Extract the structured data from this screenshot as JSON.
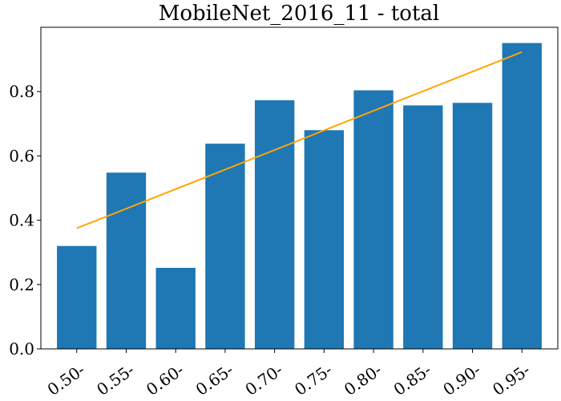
{
  "chart_data": {
    "type": "bar",
    "title": "MobileNet_2016_11 - total",
    "xlabel": "",
    "ylabel": "",
    "categories": [
      "0.50-",
      "0.55-",
      "0.60-",
      "0.65-",
      "0.70-",
      "0.75-",
      "0.80-",
      "0.85-",
      "0.90-",
      "0.95-"
    ],
    "values": [
      0.32,
      0.548,
      0.252,
      0.638,
      0.773,
      0.68,
      0.804,
      0.757,
      0.765,
      0.951
    ],
    "ylim": [
      0,
      1.0
    ],
    "yticks": [
      0.0,
      0.2,
      0.4,
      0.6,
      0.8
    ],
    "ytick_labels": [
      "0.0",
      "0.2",
      "0.4",
      "0.6",
      "0.8"
    ],
    "trend_line": {
      "start": 0.375,
      "end": 0.923
    },
    "bar_color": "#1f77b4",
    "trend_color": "#ffa500",
    "grid": false,
    "legend": "none"
  }
}
